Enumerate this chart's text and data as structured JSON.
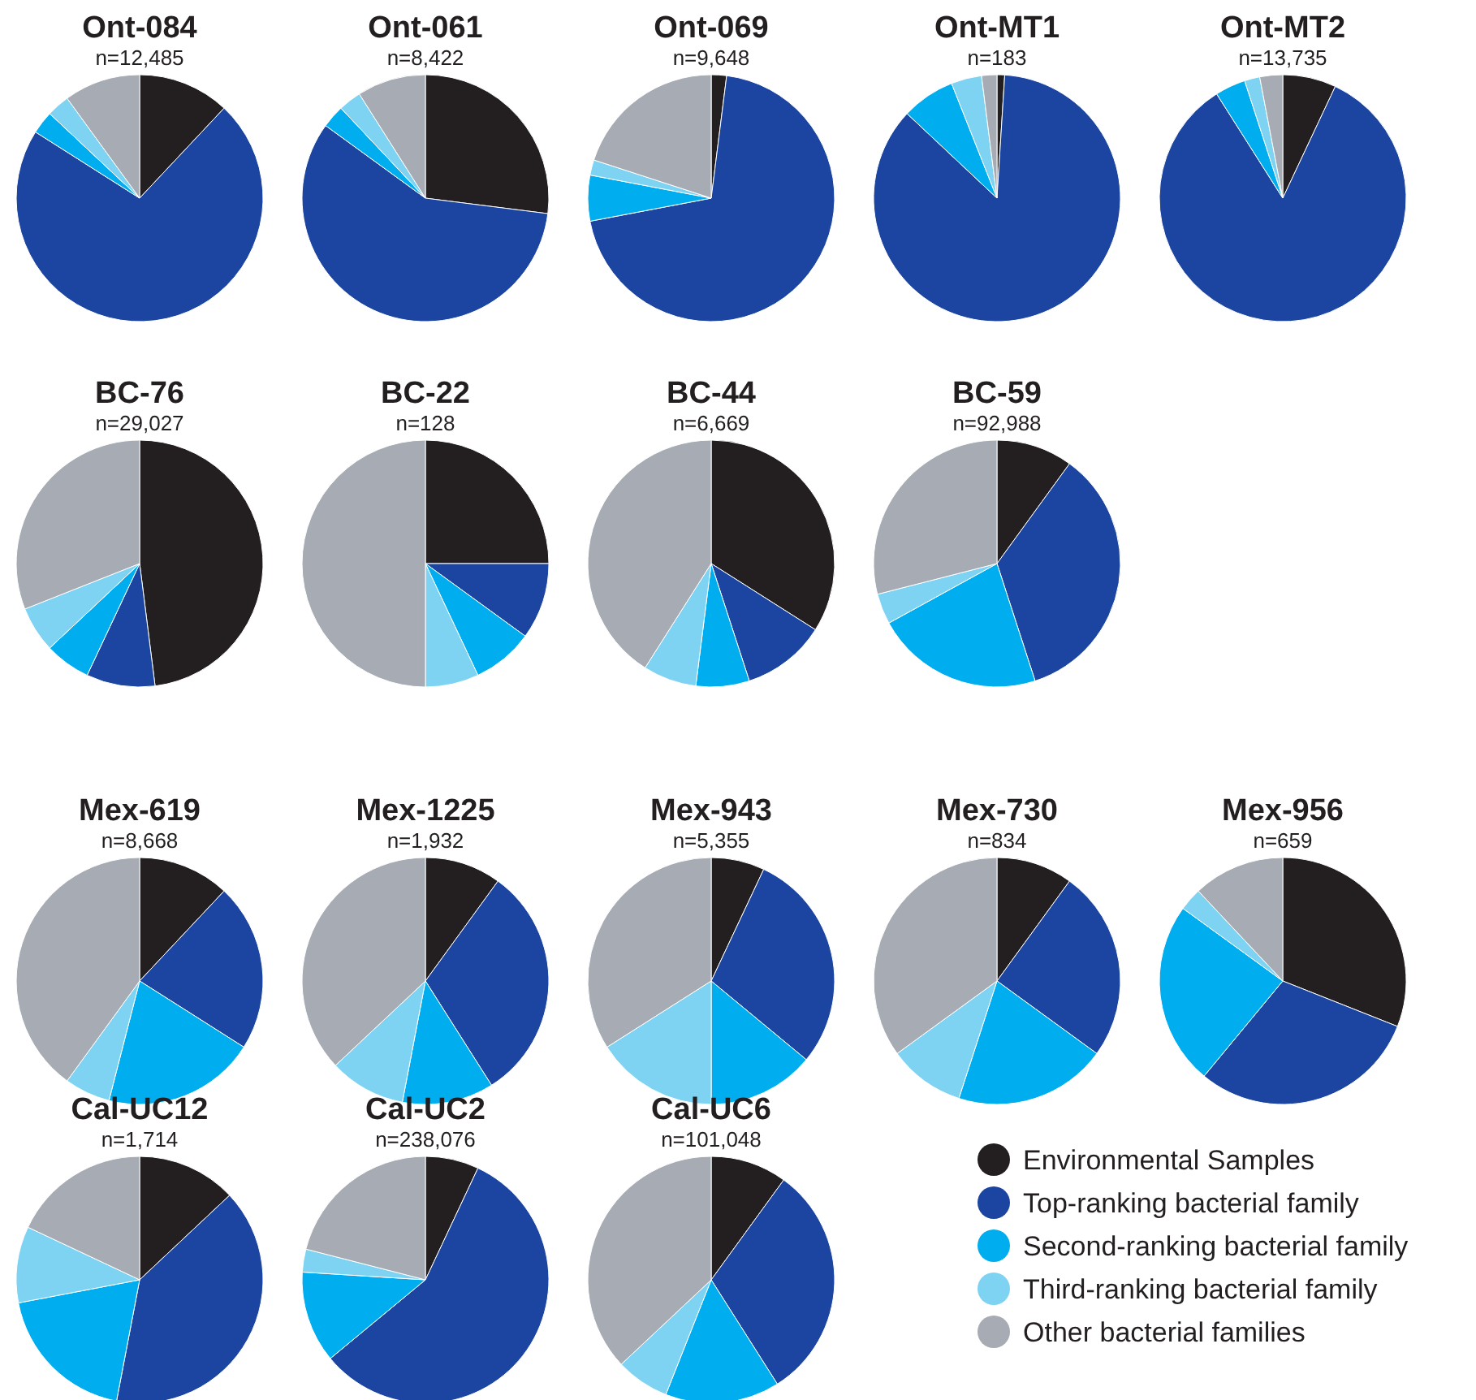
{
  "chart_data": [
    {
      "type": "pie",
      "title": "Ont-084",
      "subtitle": "n=12,485",
      "categories": [
        null,
        null,
        null,
        null,
        null
      ],
      "values": [
        12,
        72,
        3,
        3,
        10
      ],
      "colors": [
        "#231f20",
        "#1b45a0",
        "#00aeef",
        "#7fd3f2",
        "#a7abb3"
      ]
    },
    {
      "type": "pie",
      "title": "Ont-061",
      "subtitle": "n=8,422",
      "categories": [
        null,
        null,
        null,
        null,
        null
      ],
      "values": [
        27,
        58,
        3,
        3,
        9
      ],
      "colors": [
        "#231f20",
        "#1b45a0",
        "#00aeef",
        "#7fd3f2",
        "#a7abb3"
      ]
    },
    {
      "type": "pie",
      "title": "Ont-069",
      "subtitle": "n=9,648",
      "categories": [
        null,
        null,
        null,
        null,
        null
      ],
      "values": [
        2,
        70,
        6,
        2,
        20
      ],
      "colors": [
        "#231f20",
        "#1b45a0",
        "#00aeef",
        "#7fd3f2",
        "#a7abb3"
      ]
    },
    {
      "type": "pie",
      "title": "Ont-MT1",
      "subtitle": "n=183",
      "categories": [
        null,
        null,
        null,
        null,
        null
      ],
      "values": [
        1,
        86,
        7,
        4,
        2
      ],
      "colors": [
        "#231f20",
        "#1b45a0",
        "#00aeef",
        "#7fd3f2",
        "#a7abb3"
      ]
    },
    {
      "type": "pie",
      "title": "Ont-MT2",
      "subtitle": "n=13,735",
      "categories": [
        null,
        null,
        null,
        null,
        null
      ],
      "values": [
        7,
        84,
        4,
        2,
        3
      ],
      "colors": [
        "#231f20",
        "#1b45a0",
        "#00aeef",
        "#7fd3f2",
        "#a7abb3"
      ]
    },
    {
      "type": "pie",
      "title": "BC-76",
      "subtitle": "n=29,027",
      "categories": [
        null,
        null,
        null,
        null,
        null
      ],
      "values": [
        48,
        9,
        6,
        6,
        31
      ],
      "colors": [
        "#231f20",
        "#1b45a0",
        "#00aeef",
        "#7fd3f2",
        "#a7abb3"
      ]
    },
    {
      "type": "pie",
      "title": "BC-22",
      "subtitle": "n=128",
      "categories": [
        null,
        null,
        null,
        null,
        null
      ],
      "values": [
        25,
        10,
        8,
        7,
        50
      ],
      "colors": [
        "#231f20",
        "#1b45a0",
        "#00aeef",
        "#7fd3f2",
        "#a7abb3"
      ]
    },
    {
      "type": "pie",
      "title": "BC-44",
      "subtitle": "n=6,669",
      "categories": [
        null,
        null,
        null,
        null,
        null
      ],
      "values": [
        34,
        11,
        7,
        7,
        41
      ],
      "colors": [
        "#231f20",
        "#1b45a0",
        "#00aeef",
        "#7fd3f2",
        "#a7abb3"
      ]
    },
    {
      "type": "pie",
      "title": "BC-59",
      "subtitle": "n=92,988",
      "categories": [
        null,
        null,
        null,
        null,
        null
      ],
      "values": [
        10,
        35,
        22,
        4,
        29
      ],
      "colors": [
        "#231f20",
        "#1b45a0",
        "#00aeef",
        "#7fd3f2",
        "#a7abb3"
      ]
    },
    {
      "type": "pie",
      "title": "Mex-619",
      "subtitle": "n=8,668",
      "categories": [
        null,
        null,
        null,
        null,
        null
      ],
      "values": [
        12,
        22,
        20,
        6,
        40
      ],
      "colors": [
        "#231f20",
        "#1b45a0",
        "#00aeef",
        "#7fd3f2",
        "#a7abb3"
      ]
    },
    {
      "type": "pie",
      "title": "Mex-1225",
      "subtitle": "n=1,932",
      "categories": [
        null,
        null,
        null,
        null,
        null
      ],
      "values": [
        10,
        31,
        12,
        10,
        37
      ],
      "colors": [
        "#231f20",
        "#1b45a0",
        "#00aeef",
        "#7fd3f2",
        "#a7abb3"
      ]
    },
    {
      "type": "pie",
      "title": "Mex-943",
      "subtitle": "n=5,355",
      "categories": [
        null,
        null,
        null,
        null,
        null
      ],
      "values": [
        7,
        29,
        14,
        16,
        34
      ],
      "colors": [
        "#231f20",
        "#1b45a0",
        "#00aeef",
        "#7fd3f2",
        "#a7abb3"
      ]
    },
    {
      "type": "pie",
      "title": "Mex-730",
      "subtitle": "n=834",
      "categories": [
        null,
        null,
        null,
        null,
        null
      ],
      "values": [
        10,
        25,
        20,
        10,
        35
      ],
      "colors": [
        "#231f20",
        "#1b45a0",
        "#00aeef",
        "#7fd3f2",
        "#a7abb3"
      ]
    },
    {
      "type": "pie",
      "title": "Mex-956",
      "subtitle": "n=659",
      "categories": [
        null,
        null,
        null,
        null,
        null
      ],
      "values": [
        31,
        30,
        24,
        3,
        12
      ],
      "colors": [
        "#231f20",
        "#1b45a0",
        "#00aeef",
        "#7fd3f2",
        "#a7abb3"
      ]
    },
    {
      "type": "pie",
      "title": "Cal-UC12",
      "subtitle": "n=1,714",
      "categories": [
        null,
        null,
        null,
        null,
        null
      ],
      "values": [
        13,
        40,
        19,
        10,
        18
      ],
      "colors": [
        "#231f20",
        "#1b45a0",
        "#00aeef",
        "#7fd3f2",
        "#a7abb3"
      ]
    },
    {
      "type": "pie",
      "title": "Cal-UC2",
      "subtitle": "n=238,076",
      "categories": [
        null,
        null,
        null,
        null,
        null
      ],
      "values": [
        7,
        57,
        12,
        3,
        21
      ],
      "colors": [
        "#231f20",
        "#1b45a0",
        "#00aeef",
        "#7fd3f2",
        "#a7abb3"
      ]
    },
    {
      "type": "pie",
      "title": "Cal-UC6",
      "subtitle": "n=101,048",
      "categories": [
        "Environmental Samples",
        "Top-ranking bacterial family",
        "Second-ranking bacterial family",
        "Third-ranking bacterial family",
        "Other bacterial families"
      ],
      "values": [
        10,
        31,
        15,
        7,
        37
      ],
      "colors": [
        "#231f20",
        "#1b45a0",
        "#00aeef",
        "#7fd3f2",
        "#a7abb3"
      ],
      "legend": "right"
    }
  ]
}
